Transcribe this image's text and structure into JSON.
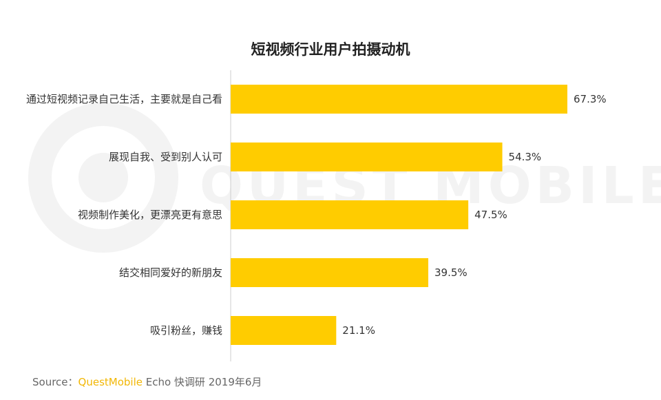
{
  "colors": {
    "bar": "#ffcc00",
    "axis": "#cccccc",
    "watermark": "#f2f2f2"
  },
  "watermark": "QUEST MOBILE",
  "chart_data": {
    "type": "bar",
    "orientation": "horizontal",
    "title": "短视频行业用户拍摄动机",
    "categories": [
      "通过短视频记录自己生活，主要就是自己看",
      "展现自我、受到别人认可",
      "视频制作美化，更漂亮更有意思",
      "结交相同爱好的新朋友",
      "吸引粉丝，赚钱"
    ],
    "values": [
      67.3,
      54.3,
      47.5,
      39.5,
      21.1
    ],
    "value_labels": [
      "67.3%",
      "54.3%",
      "47.5%",
      "39.5%",
      "21.1%"
    ],
    "xlim": [
      0,
      67.3
    ],
    "grid": false
  },
  "source": {
    "prefix": "Source：",
    "brand": "QuestMobile",
    "suffix": " Echo 快调研 2019年6月"
  }
}
